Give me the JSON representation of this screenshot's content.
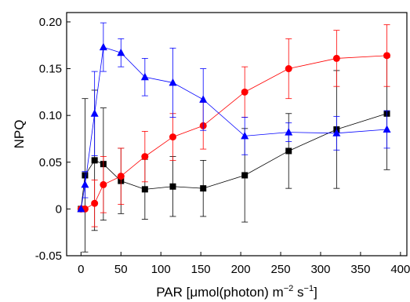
{
  "chart_data": {
    "type": "line",
    "title": "",
    "xlabel": {
      "prefix": "PAR [",
      "mu": "μ",
      "mid1": "mol(photon) m",
      "sup1": "−2",
      "mid2": " s",
      "sup2": "−1",
      "suffix": "]"
    },
    "ylabel": "NPQ",
    "xlim": [
      -18,
      408
    ],
    "ylim": [
      -0.05,
      0.21
    ],
    "xticks": [
      0,
      50,
      100,
      150,
      200,
      250,
      300,
      350,
      400
    ],
    "yticks": [
      -0.05,
      0,
      0.05,
      0.1,
      0.15,
      0.2
    ],
    "ytick_labels": [
      "-0.05",
      "0",
      "0.05",
      "0.10",
      "0.15",
      "0.20"
    ],
    "grid": false,
    "series": [
      {
        "marker": "square",
        "color": "#000000",
        "x": [
          0,
          5,
          17,
          28,
          50,
          80,
          115,
          153,
          205,
          260,
          320,
          383
        ],
        "y": [
          0,
          0.036,
          0.052,
          0.048,
          0.03,
          0.021,
          0.024,
          0.022,
          0.036,
          0.062,
          0.085,
          0.102
        ],
        "err": [
          0,
          0.082,
          0.075,
          0.06,
          0.035,
          0.032,
          0.032,
          0.03,
          0.05,
          0.04,
          0.063,
          0.06
        ]
      },
      {
        "marker": "circle",
        "color": "#ff0000",
        "x": [
          0,
          5,
          17,
          28,
          50,
          80,
          115,
          153,
          205,
          260,
          320,
          383
        ],
        "y": [
          0,
          0,
          0.006,
          0.026,
          0.035,
          0.056,
          0.077,
          0.089,
          0.125,
          0.15,
          0.161,
          0.164
        ],
        "err": [
          0,
          0,
          0.025,
          0.03,
          0.03,
          0.027,
          0.025,
          0.025,
          0.027,
          0.032,
          0.03,
          0.033
        ]
      },
      {
        "marker": "triangle",
        "color": "#0000ff",
        "x": [
          0,
          5,
          17,
          28,
          50,
          80,
          115,
          153,
          205,
          260,
          320,
          383
        ],
        "y": [
          0,
          0.026,
          0.102,
          0.173,
          0.167,
          0.141,
          0.135,
          0.117,
          0.078,
          0.082,
          0.081,
          0.085
        ],
        "err": [
          0,
          0.014,
          0.045,
          0.026,
          0.015,
          0.02,
          0.037,
          0.033,
          0.02,
          0.01,
          0.018,
          0.02
        ]
      }
    ]
  }
}
